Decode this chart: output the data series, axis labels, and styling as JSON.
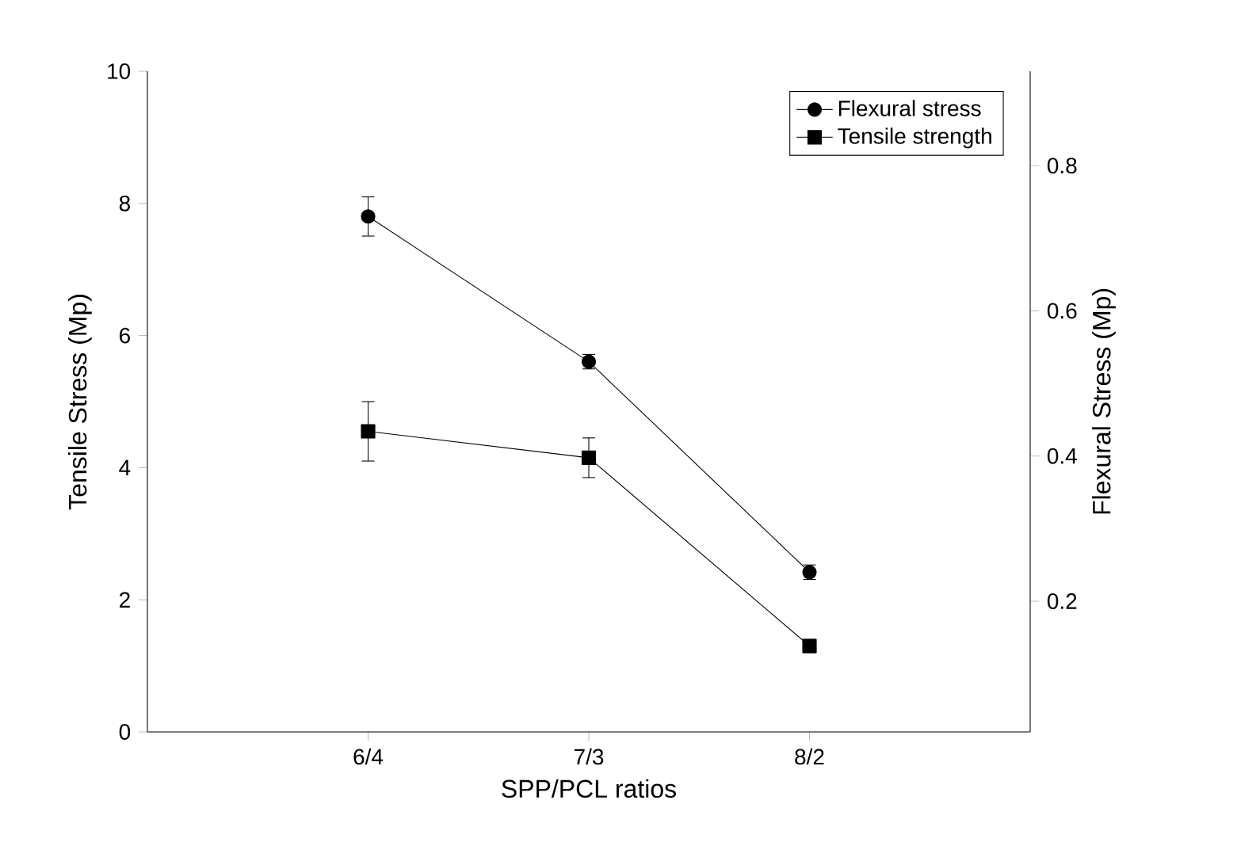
{
  "chart_data": {
    "type": "line",
    "categories": [
      "6/4",
      "7/3",
      "8/2"
    ],
    "xlabel": "SPP/PCL ratios",
    "ylabel": "Tensile Stress (Mp)",
    "y2label": "Flexural Stress (Mp)",
    "ylim": [
      0,
      10
    ],
    "yticks": [
      0,
      2,
      4,
      6,
      8,
      10
    ],
    "y2lim": [
      0.02,
      0.93
    ],
    "y2ticks": [
      0.2,
      0.4,
      0.6,
      0.8
    ],
    "legend": "top right",
    "series": [
      {
        "name": "Flexural stress",
        "color": "#000000",
        "marker": "circle",
        "axis": "y2",
        "values": [
          0.73,
          0.53,
          0.24
        ],
        "errors": [
          0.027,
          0.01,
          0.01
        ]
      },
      {
        "name": "Tensile strength",
        "color": "#000000",
        "marker": "square",
        "values": [
          4.55,
          4.15,
          1.3
        ],
        "errors": [
          0.45,
          0.3,
          0.1
        ]
      }
    ]
  }
}
